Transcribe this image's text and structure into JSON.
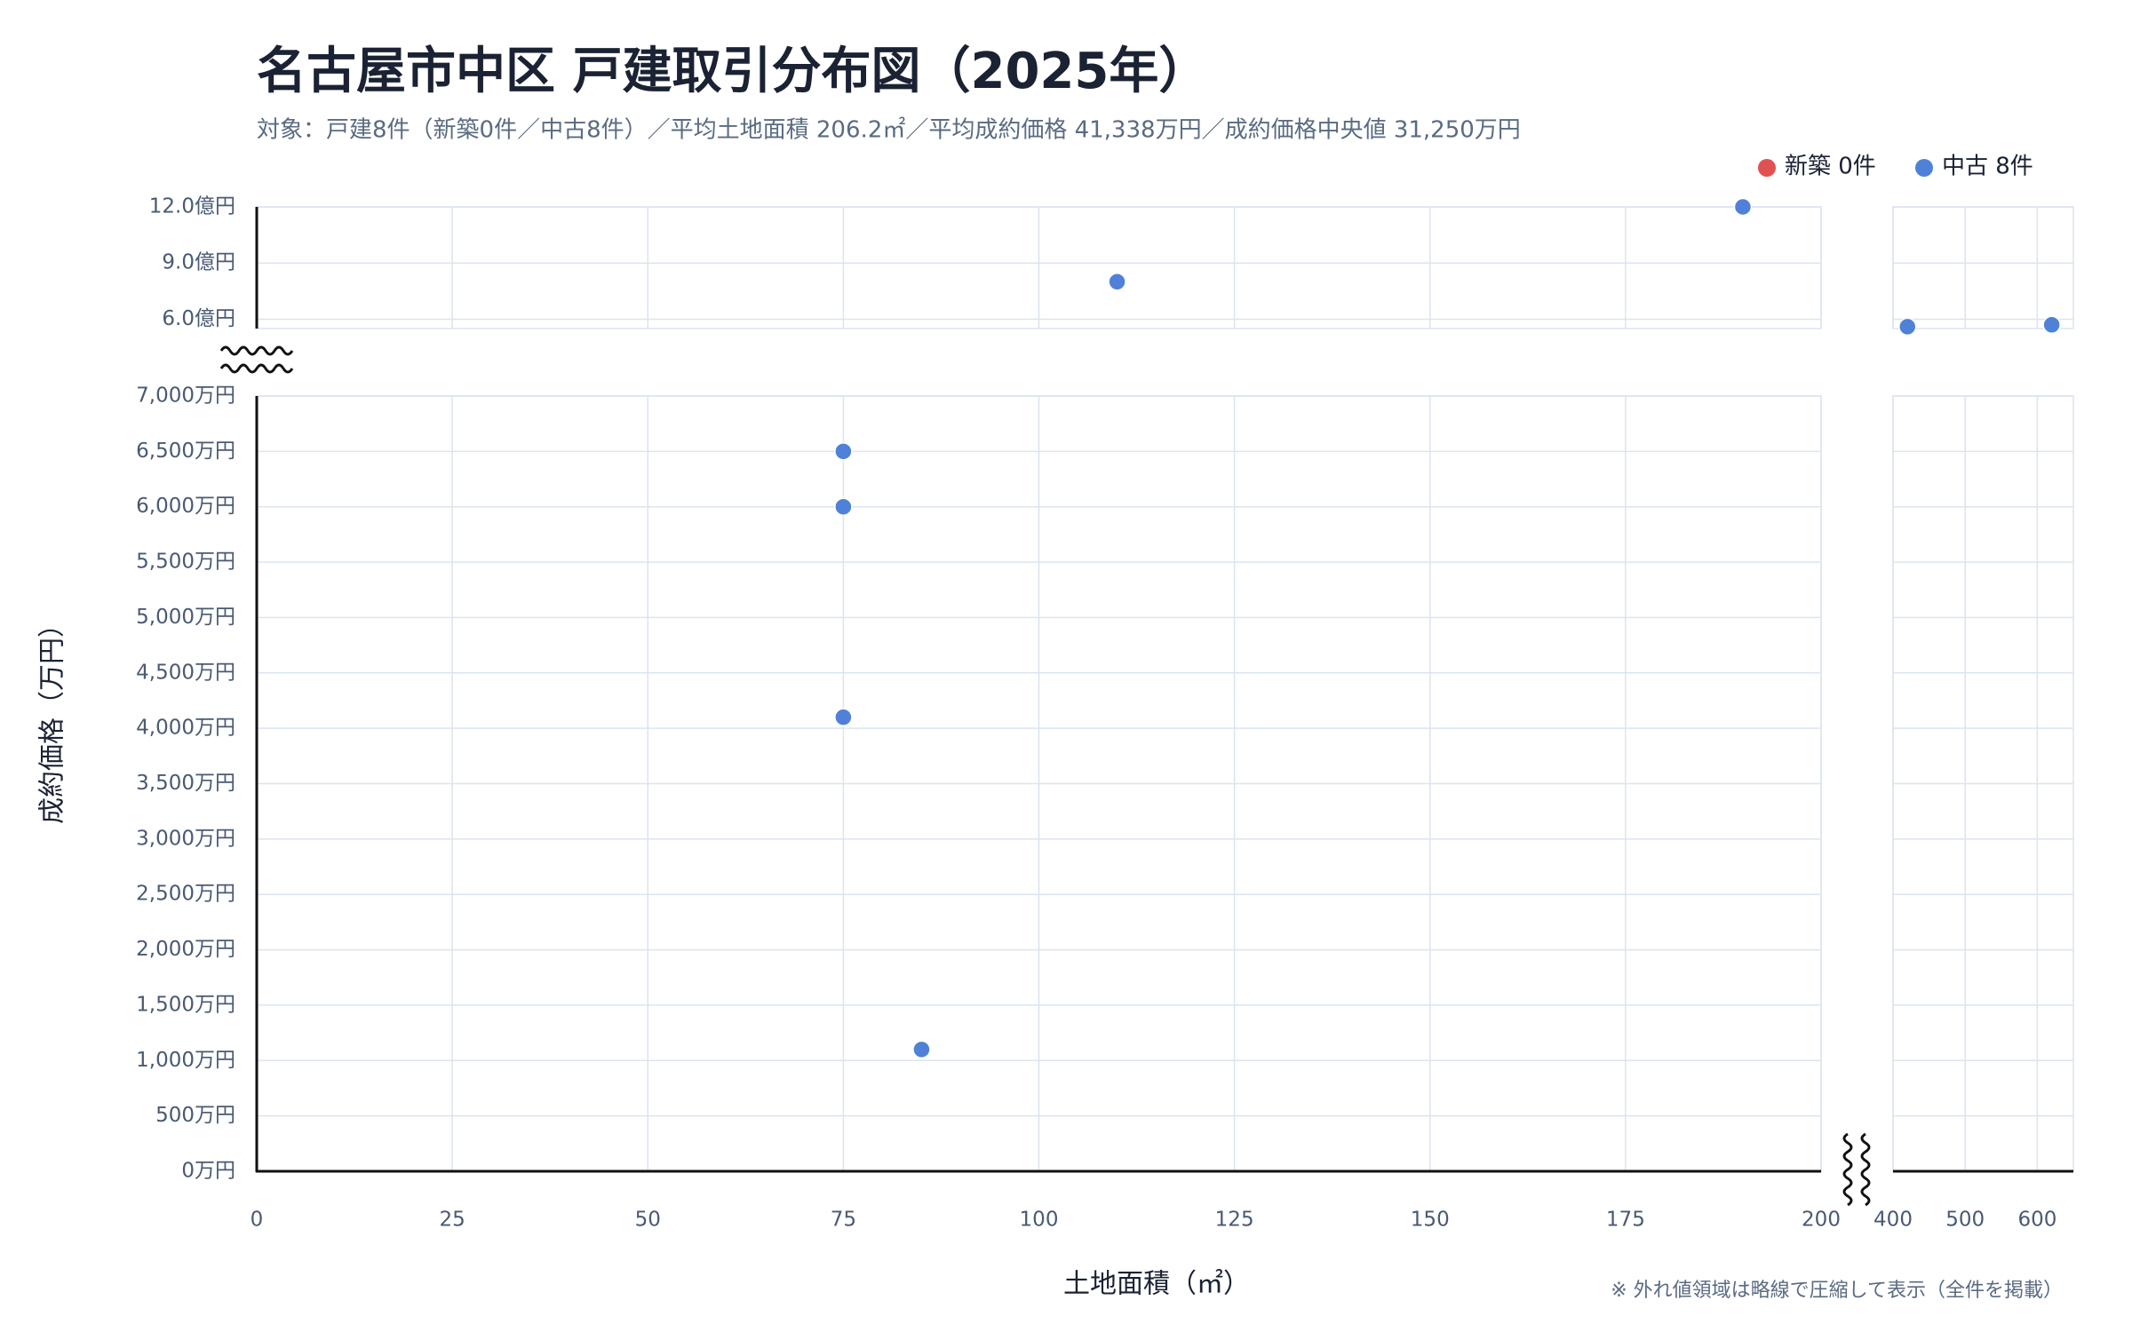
{
  "chart_data": {
    "type": "scatter",
    "title": "名古屋市中区 戸建取引分布図（2025年）",
    "subtitle": "対象：戸建8件（新築0件／中古8件）／平均土地面積 206.2㎡／平均成約価格 41,338万円／成約価格中央値 31,250万円",
    "x_label": "土地面積（㎡）",
    "y_label": "成約価格（万円）",
    "note": "※ 外れ値領域は略線で圧縮して表示（全件を掲載）",
    "grid": true,
    "legend": "top-right",
    "x_segments": [
      {
        "xlim": [
          0,
          200
        ],
        "xticks": [
          0,
          25,
          50,
          75,
          100,
          125,
          150,
          175,
          200
        ]
      },
      {
        "xlim": [
          400,
          650
        ],
        "xticks": [
          400,
          500,
          600
        ]
      }
    ],
    "y_segments": [
      {
        "ylim": [
          0,
          7000
        ],
        "yticks": [
          {
            "value": 0,
            "label": "0万円"
          },
          {
            "value": 500,
            "label": "500万円"
          },
          {
            "value": 1000,
            "label": "1,000万円"
          },
          {
            "value": 1500,
            "label": "1,500万円"
          },
          {
            "value": 2000,
            "label": "2,000万円"
          },
          {
            "value": 2500,
            "label": "2,500万円"
          },
          {
            "value": 3000,
            "label": "3,000万円"
          },
          {
            "value": 3500,
            "label": "3,500万円"
          },
          {
            "value": 4000,
            "label": "4,000万円"
          },
          {
            "value": 4500,
            "label": "4,500万円"
          },
          {
            "value": 5000,
            "label": "5,000万円"
          },
          {
            "value": 5500,
            "label": "5,500万円"
          },
          {
            "value": 6000,
            "label": "6,000万円"
          },
          {
            "value": 6500,
            "label": "6,500万円"
          },
          {
            "value": 7000,
            "label": "7,000万円"
          }
        ]
      },
      {
        "ylim": [
          55000,
          120000
        ],
        "yticks": [
          {
            "value": 60000,
            "label": "6.0億円"
          },
          {
            "value": 90000,
            "label": "9.0億円"
          },
          {
            "value": 120000,
            "label": "12.0億円"
          }
        ]
      }
    ],
    "series": [
      {
        "name": "新築 0件",
        "color": "#e05252",
        "x": [],
        "values": []
      },
      {
        "name": "中古 8件",
        "color": "#4f81d9",
        "x": [
          190,
          110,
          420,
          620,
          75,
          75,
          75,
          85
        ],
        "values": [
          120000,
          80000,
          56000,
          57000,
          6500,
          6000,
          4100,
          1100
        ]
      }
    ]
  }
}
